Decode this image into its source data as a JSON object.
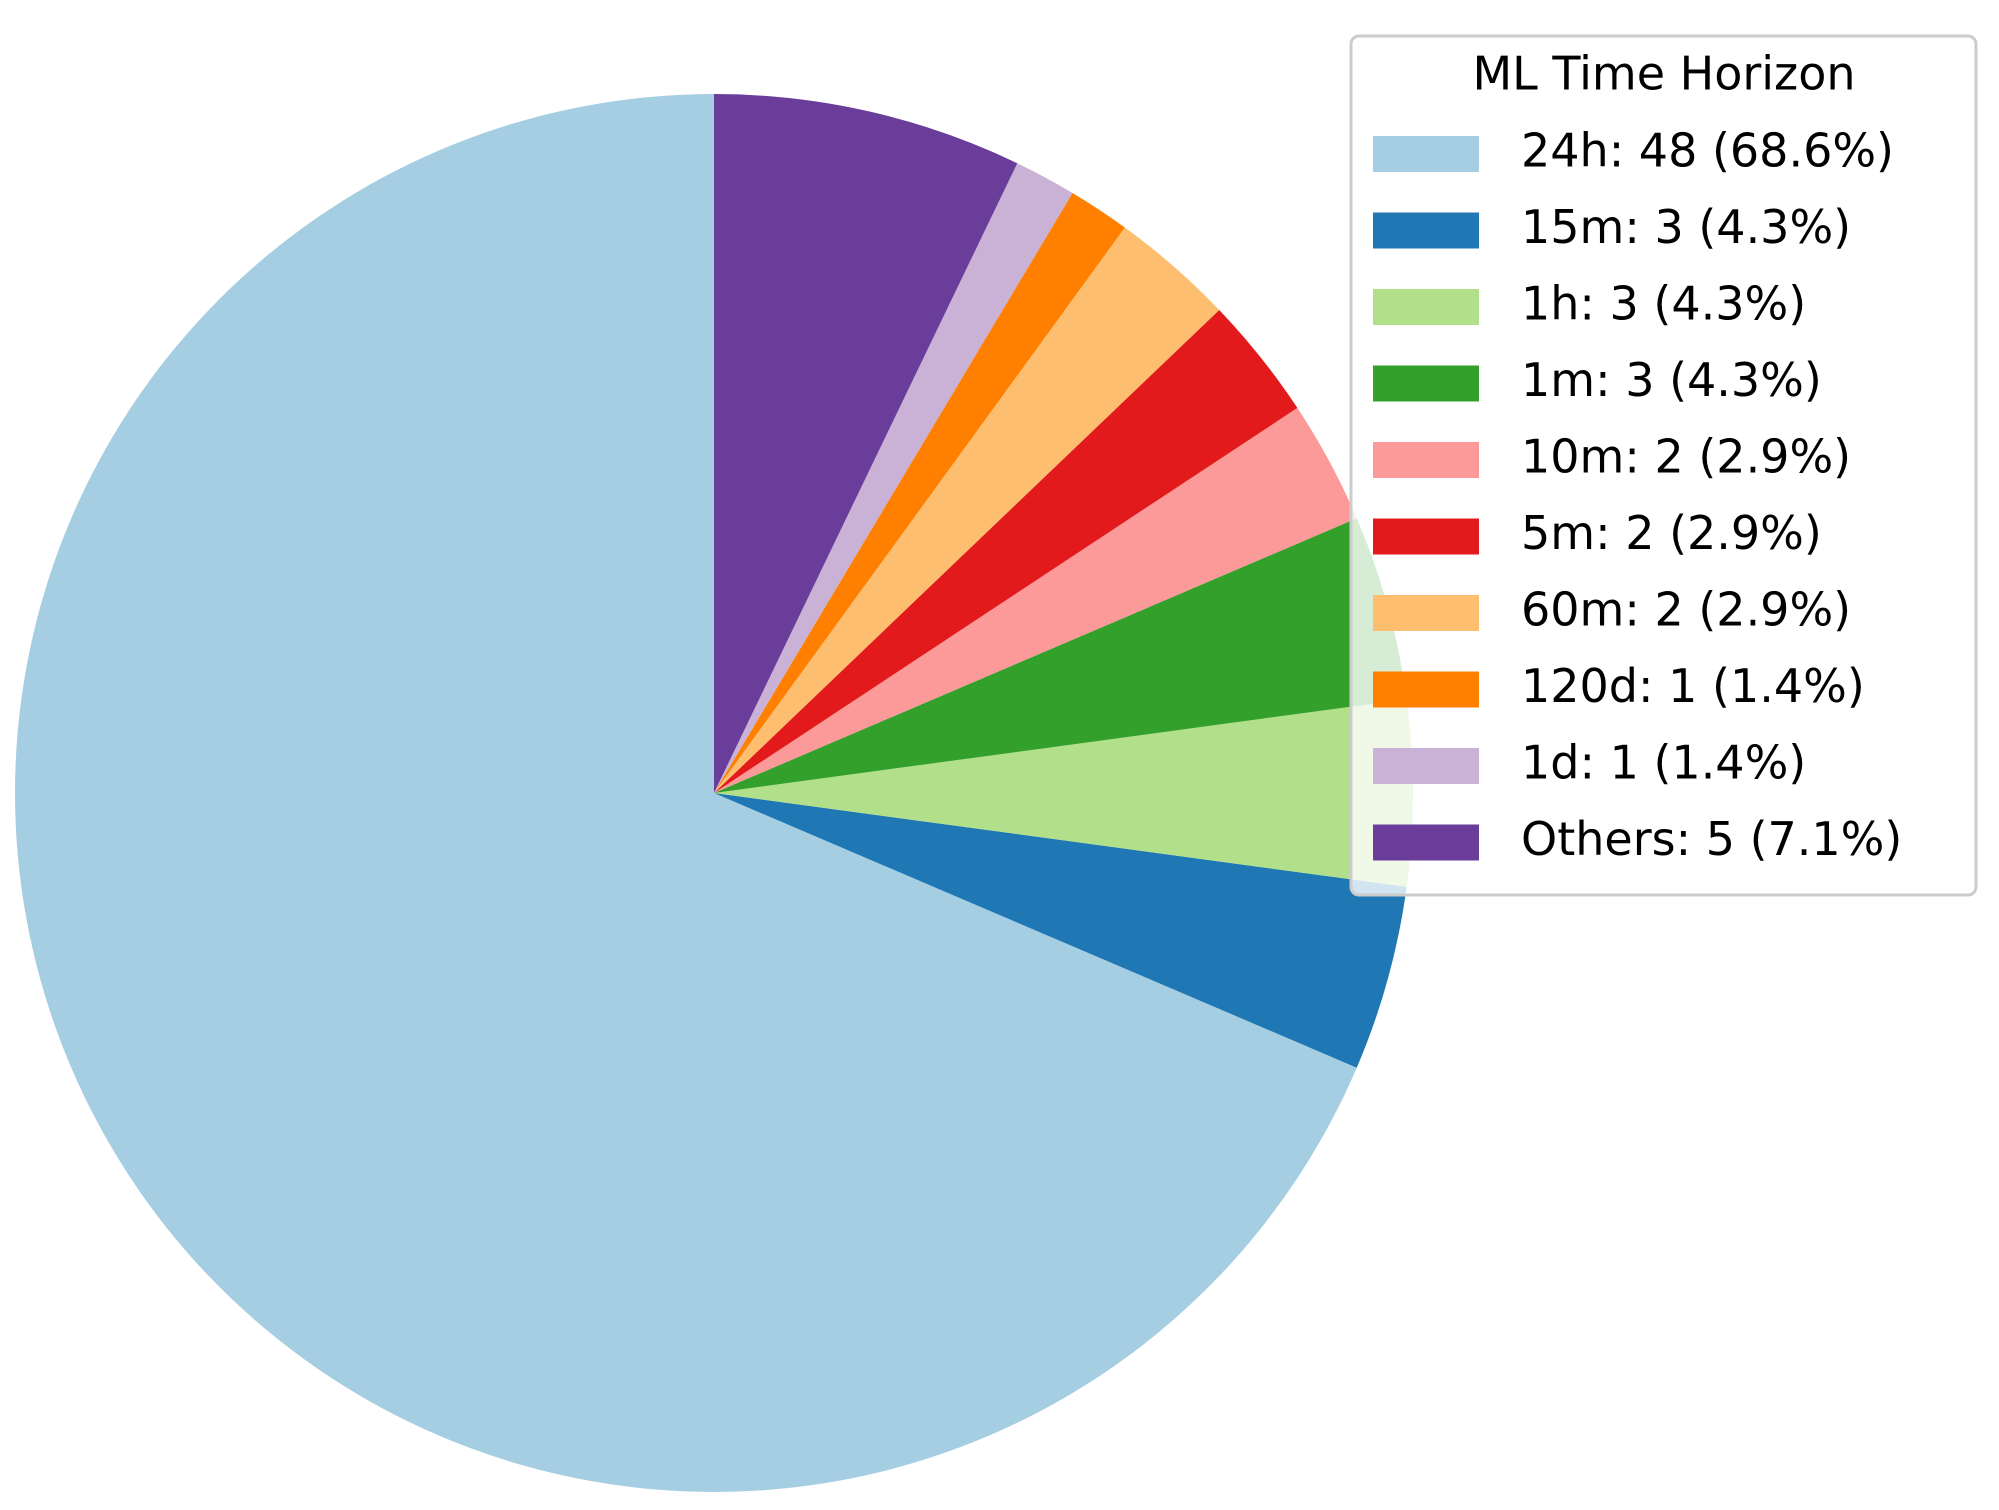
{
  "chart_data": {
    "type": "pie",
    "legend_title": "ML Time Horizon",
    "categories": [
      "24h: 48 (68.6%)",
      "15m: 3 (4.3%)",
      "1h: 3 (4.3%)",
      "1m: 3 (4.3%)",
      "10m: 2 (2.9%)",
      "5m: 2 (2.9%)",
      "60m: 2 (2.9%)",
      "120d: 1 (1.4%)",
      "1d: 1 (1.4%)",
      "Others: 5 (7.1%)"
    ],
    "values": [
      48,
      3,
      3,
      3,
      2,
      2,
      2,
      1,
      1,
      5
    ],
    "colors": [
      "#a6cee3",
      "#1f78b4",
      "#b2df8a",
      "#33a02c",
      "#fb9a99",
      "#e31a1c",
      "#fdbf6f",
      "#ff7f00",
      "#cab2d6",
      "#6a3d9a"
    ],
    "legend": "upper right"
  }
}
